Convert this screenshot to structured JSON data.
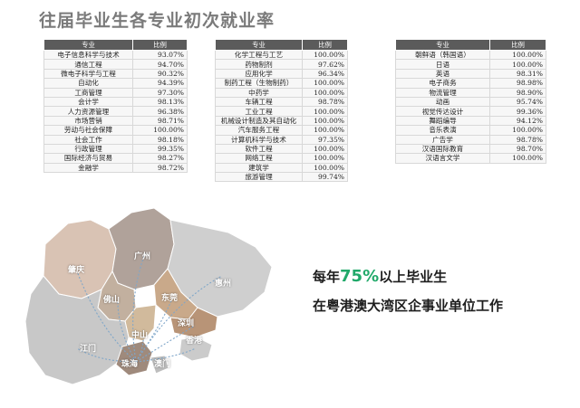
{
  "page": {
    "title": "往届毕业生各专业初次就业率"
  },
  "table_header": {
    "major": "专业",
    "rate": "比例"
  },
  "tables": [
    {
      "rows": [
        {
          "major": "电子信息科学与技术",
          "rate": "93.07%"
        },
        {
          "major": "通信工程",
          "rate": "94.70%"
        },
        {
          "major": "微电子科学与工程",
          "rate": "90.32%"
        },
        {
          "major": "自动化",
          "rate": "94.39%"
        },
        {
          "major": "工商管理",
          "rate": "97.30%"
        },
        {
          "major": "会计学",
          "rate": "98.13%"
        },
        {
          "major": "人力资源管理",
          "rate": "96.38%"
        },
        {
          "major": "市场营销",
          "rate": "98.71%"
        },
        {
          "major": "劳动与社会保障",
          "rate": "100.00%"
        },
        {
          "major": "社会工作",
          "rate": "98.18%"
        },
        {
          "major": "行政管理",
          "rate": "99.35%"
        },
        {
          "major": "国际经济与贸易",
          "rate": "98.27%"
        },
        {
          "major": "金融学",
          "rate": "98.72%"
        }
      ]
    },
    {
      "rows": [
        {
          "major": "化学工程与工艺",
          "rate": "100.00%"
        },
        {
          "major": "药物制剂",
          "rate": "97.62%"
        },
        {
          "major": "应用化学",
          "rate": "96.34%"
        },
        {
          "major": "制药工程（生物制药）",
          "rate": "100.00%"
        },
        {
          "major": "中药学",
          "rate": "100.00%"
        },
        {
          "major": "车辆工程",
          "rate": "98.78%"
        },
        {
          "major": "工业工程",
          "rate": "100.00%"
        },
        {
          "major": "机械设计制造及其自动化",
          "rate": "100.00%"
        },
        {
          "major": "汽车服务工程",
          "rate": "100.00%"
        },
        {
          "major": "计算机科学与技术",
          "rate": "97.35%"
        },
        {
          "major": "软件工程",
          "rate": "100.00%"
        },
        {
          "major": "网络工程",
          "rate": "100.00%"
        },
        {
          "major": "建筑学",
          "rate": "100.00%"
        },
        {
          "major": "旅游管理",
          "rate": "99.74%"
        }
      ]
    },
    {
      "rows": [
        {
          "major": "朝鲜语（韩国语）",
          "rate": "100.00%"
        },
        {
          "major": "日语",
          "rate": "100.00%"
        },
        {
          "major": "英语",
          "rate": "98.31%"
        },
        {
          "major": "电子商务",
          "rate": "98.98%"
        },
        {
          "major": "物流管理",
          "rate": "98.90%"
        },
        {
          "major": "动画",
          "rate": "95.74%"
        },
        {
          "major": "视觉传达设计",
          "rate": "99.36%"
        },
        {
          "major": "舞蹈编导",
          "rate": "94.12%"
        },
        {
          "major": "音乐表演",
          "rate": "100.00%"
        },
        {
          "major": "广告学",
          "rate": "98.78%"
        },
        {
          "major": "汉语国际教育",
          "rate": "98.70%"
        },
        {
          "major": "汉语言文学",
          "rate": "100.00%"
        }
      ]
    }
  ],
  "map": {
    "cities": [
      "肇庆",
      "广州",
      "惠州",
      "佛山",
      "东莞",
      "深圳",
      "中山",
      "香港",
      "江门",
      "珠海",
      "澳门"
    ],
    "colors": {
      "zhaoqing": "#d9c3b4",
      "guangzhou": "#b0a29a",
      "huizhou": "#cfcfcf",
      "foshan": "#c2b09f",
      "dongguan": "#c9a98a",
      "shenzhen": "#b89477",
      "zhongshan": "#d1ba9c",
      "hongkong": "#cbcbcb",
      "jiangmen": "#c8c8c8",
      "zhuhai": "#9f8a7c",
      "macau": "#bdbdbd",
      "route": "#7fa6c9"
    }
  },
  "slogan": {
    "line1_prefix": "每年",
    "line1_pct": "75%",
    "line1_suffix": "以上毕业生",
    "line2": "在粤港澳大湾区企事业单位工作",
    "accent_color": "#21a96a"
  }
}
